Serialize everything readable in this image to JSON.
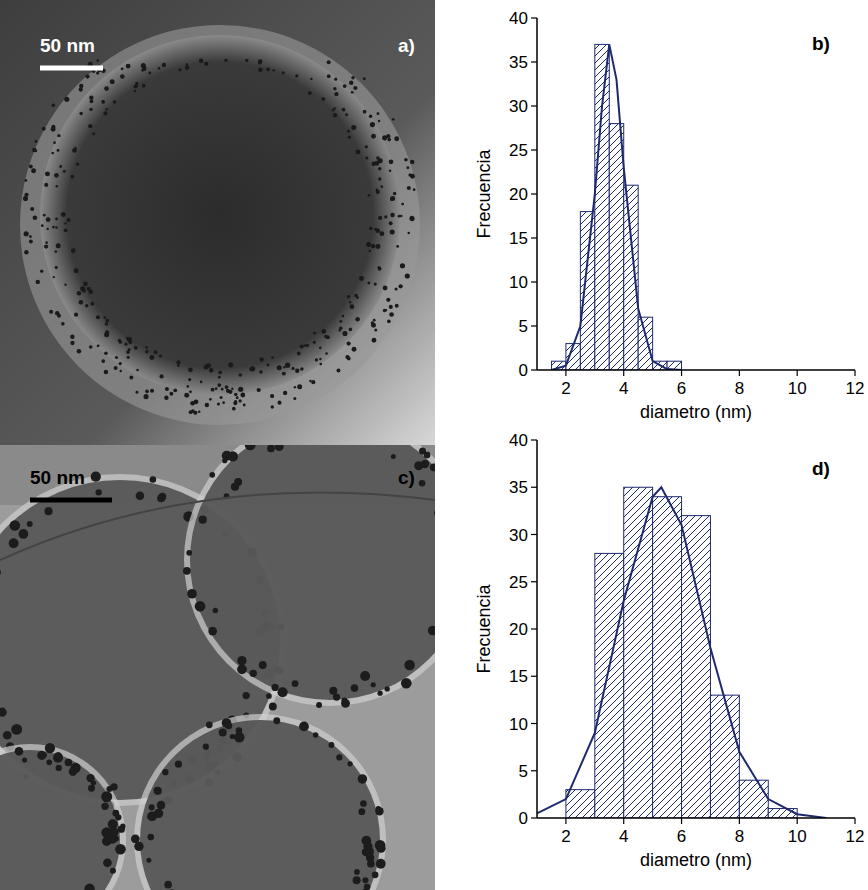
{
  "images": [
    {
      "panel_label": "a)",
      "scale_bar": "50 nm"
    },
    {
      "panel_label": "c)",
      "scale_bar": "50 nm"
    }
  ],
  "chart_data": [
    {
      "type": "histogram",
      "panel_label": "b)",
      "x_label": "diametro (nm)",
      "y_label": "Frecuencia",
      "bins": [
        1.5,
        2,
        2.5,
        3,
        3.5,
        4,
        4.5,
        5,
        5.5,
        6
      ],
      "values": [
        1,
        3,
        18,
        37,
        28,
        21,
        6,
        1,
        1
      ],
      "color": "#1f2a6e",
      "fit": {
        "x": [
          1.5,
          2,
          2.5,
          3,
          3.25,
          3.5,
          3.75,
          4,
          4.5,
          5,
          5.5,
          6
        ],
        "values": [
          0,
          0.5,
          5,
          20,
          30,
          37,
          33,
          23,
          7,
          1,
          0.1,
          0
        ]
      },
      "xlim": [
        1,
        12
      ],
      "ylim": [
        0,
        40
      ],
      "xticks": [
        2,
        4,
        6,
        8,
        10,
        12
      ],
      "yticks": [
        0,
        5,
        10,
        15,
        20,
        25,
        30,
        35,
        40
      ]
    },
    {
      "type": "histogram",
      "panel_label": "d)",
      "x_label": "diametro (nm)",
      "y_label": "Frecuencia",
      "bins": [
        2,
        3,
        4,
        5,
        6,
        7,
        8,
        9,
        10
      ],
      "values": [
        3,
        28,
        35,
        34,
        32,
        13,
        4,
        1
      ],
      "color": "#1f2a6e",
      "fit": {
        "x": [
          1,
          2,
          3,
          4,
          5,
          5.3,
          6,
          7,
          8,
          9,
          10,
          11
        ],
        "values": [
          0.5,
          2,
          9,
          23,
          34,
          35,
          31,
          18,
          7,
          2,
          0.4,
          0
        ]
      },
      "xlim": [
        1,
        12
      ],
      "ylim": [
        0,
        40
      ],
      "xticks": [
        2,
        4,
        6,
        8,
        10,
        12
      ],
      "yticks": [
        0,
        5,
        10,
        15,
        20,
        25,
        30,
        35,
        40
      ]
    }
  ]
}
